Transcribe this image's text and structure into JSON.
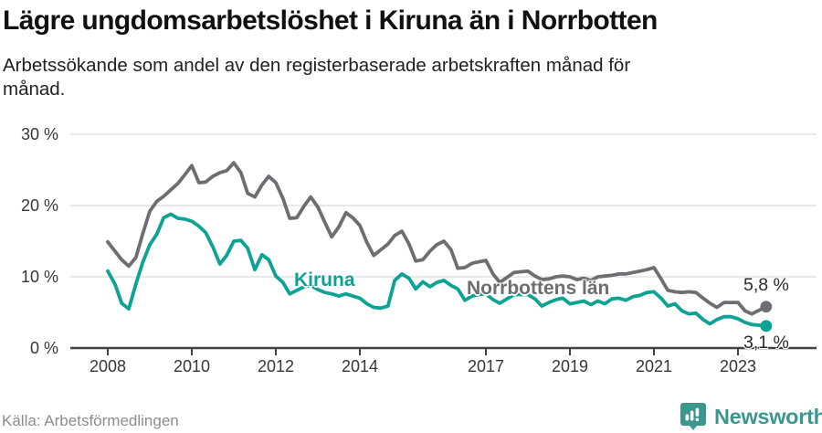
{
  "header": {
    "title": "Lägre ungdomsarbetslöshet i Kiruna än i Norrbotten",
    "subtitle": "Arbetssökande som andel av den registerbaserade arbetskraften månad för månad."
  },
  "footer": {
    "source": "Källa: Arbetsförmedlingen",
    "brand_name": "Newsworthy",
    "brand_icon": "bar-chart-speech-bubble-icon",
    "brand_color": "#3B978D"
  },
  "colors": {
    "kiruna_line": "#0CA294",
    "norrbotten_line": "#6D6D72",
    "gridline": "#E2E2E2",
    "axis": "#404046",
    "axis_text": "#36363B",
    "end_label_text": "#2B2B2B"
  },
  "chart_data": {
    "type": "line",
    "title": "Lägre ungdomsarbetslöshet i Kiruna än i Norrbotten",
    "subtitle": "Arbetssökande som andel av den registerbaserade arbetskraften månad för månad.",
    "unit": "%",
    "grid": "horizontal-only",
    "legend_position": "inline-labels",
    "x_axis": {
      "tick_labels": [
        "2008",
        "2010",
        "2012",
        "2014",
        "2017",
        "2019",
        "2021",
        "2023"
      ],
      "tick_values": [
        2008,
        2010,
        2012,
        2014,
        2017,
        2019,
        2021,
        2023
      ],
      "range": [
        2007.75,
        2024.1
      ]
    },
    "y_axis": {
      "tick_labels": [
        "0 %",
        "10 %",
        "20 %",
        "30 %"
      ],
      "tick_values": [
        0,
        10,
        20,
        30
      ],
      "range": [
        0,
        30
      ]
    },
    "series": [
      {
        "name": "Norrbottens län",
        "color": "#6D6D72",
        "end_label": "5,8 %",
        "end_value": 5.8,
        "points": [
          [
            2008.0,
            14.9
          ],
          [
            2008.17,
            13.6
          ],
          [
            2008.33,
            12.4
          ],
          [
            2008.5,
            11.5
          ],
          [
            2008.67,
            12.7
          ],
          [
            2008.83,
            16.0
          ],
          [
            2009.0,
            19.2
          ],
          [
            2009.17,
            20.6
          ],
          [
            2009.33,
            21.3
          ],
          [
            2009.5,
            22.2
          ],
          [
            2009.67,
            23.1
          ],
          [
            2009.83,
            24.3
          ],
          [
            2010.0,
            25.6
          ],
          [
            2010.17,
            23.2
          ],
          [
            2010.33,
            23.3
          ],
          [
            2010.5,
            24.1
          ],
          [
            2010.67,
            24.6
          ],
          [
            2010.83,
            24.9
          ],
          [
            2011.0,
            26.0
          ],
          [
            2011.17,
            24.6
          ],
          [
            2011.33,
            21.7
          ],
          [
            2011.5,
            21.2
          ],
          [
            2011.67,
            22.9
          ],
          [
            2011.83,
            24.1
          ],
          [
            2012.0,
            23.2
          ],
          [
            2012.17,
            21.0
          ],
          [
            2012.33,
            18.2
          ],
          [
            2012.5,
            18.3
          ],
          [
            2012.67,
            19.9
          ],
          [
            2012.83,
            21.2
          ],
          [
            2013.0,
            19.8
          ],
          [
            2013.17,
            17.6
          ],
          [
            2013.33,
            15.6
          ],
          [
            2013.5,
            17.0
          ],
          [
            2013.67,
            19.0
          ],
          [
            2013.83,
            18.3
          ],
          [
            2014.0,
            17.2
          ],
          [
            2014.17,
            14.8
          ],
          [
            2014.33,
            13.0
          ],
          [
            2014.5,
            13.8
          ],
          [
            2014.67,
            14.6
          ],
          [
            2014.83,
            15.8
          ],
          [
            2015.0,
            16.4
          ],
          [
            2015.17,
            14.6
          ],
          [
            2015.33,
            12.2
          ],
          [
            2015.5,
            12.4
          ],
          [
            2015.67,
            13.6
          ],
          [
            2015.83,
            14.5
          ],
          [
            2016.0,
            15.0
          ],
          [
            2016.17,
            13.8
          ],
          [
            2016.33,
            11.2
          ],
          [
            2016.5,
            11.3
          ],
          [
            2016.67,
            11.9
          ],
          [
            2016.83,
            12.1
          ],
          [
            2017.0,
            12.3
          ],
          [
            2017.17,
            10.4
          ],
          [
            2017.33,
            9.2
          ],
          [
            2017.5,
            9.9
          ],
          [
            2017.67,
            10.6
          ],
          [
            2017.83,
            10.7
          ],
          [
            2018.0,
            10.8
          ],
          [
            2018.17,
            10.1
          ],
          [
            2018.33,
            9.6
          ],
          [
            2018.5,
            9.7
          ],
          [
            2018.67,
            10.0
          ],
          [
            2018.83,
            10.1
          ],
          [
            2019.0,
            10.0
          ],
          [
            2019.17,
            9.6
          ],
          [
            2019.33,
            9.8
          ],
          [
            2019.5,
            9.5
          ],
          [
            2019.67,
            10.0
          ],
          [
            2019.83,
            10.1
          ],
          [
            2020.0,
            10.2
          ],
          [
            2020.17,
            10.4
          ],
          [
            2020.33,
            10.4
          ],
          [
            2020.5,
            10.6
          ],
          [
            2020.67,
            10.8
          ],
          [
            2020.83,
            11.0
          ],
          [
            2021.0,
            11.3
          ],
          [
            2021.17,
            9.7
          ],
          [
            2021.33,
            8.1
          ],
          [
            2021.5,
            7.9
          ],
          [
            2021.67,
            7.8
          ],
          [
            2021.83,
            7.9
          ],
          [
            2022.0,
            7.8
          ],
          [
            2022.17,
            7.0
          ],
          [
            2022.33,
            6.3
          ],
          [
            2022.5,
            5.7
          ],
          [
            2022.67,
            6.4
          ],
          [
            2022.83,
            6.4
          ],
          [
            2023.0,
            6.4
          ],
          [
            2023.17,
            5.2
          ],
          [
            2023.33,
            4.8
          ],
          [
            2023.5,
            5.3
          ],
          [
            2023.67,
            5.8
          ]
        ]
      },
      {
        "name": "Kiruna",
        "color": "#0CA294",
        "end_label": "3,1 %",
        "end_value": 3.1,
        "points": [
          [
            2008.0,
            10.8
          ],
          [
            2008.17,
            9.0
          ],
          [
            2008.33,
            6.3
          ],
          [
            2008.5,
            5.5
          ],
          [
            2008.67,
            9.0
          ],
          [
            2008.83,
            12.0
          ],
          [
            2009.0,
            14.5
          ],
          [
            2009.17,
            16.0
          ],
          [
            2009.33,
            18.3
          ],
          [
            2009.5,
            18.8
          ],
          [
            2009.67,
            18.2
          ],
          [
            2009.83,
            18.1
          ],
          [
            2010.0,
            17.8
          ],
          [
            2010.17,
            17.1
          ],
          [
            2010.33,
            16.2
          ],
          [
            2010.5,
            14.2
          ],
          [
            2010.67,
            11.8
          ],
          [
            2010.83,
            13.0
          ],
          [
            2011.0,
            15.0
          ],
          [
            2011.17,
            15.1
          ],
          [
            2011.33,
            14.0
          ],
          [
            2011.5,
            11.0
          ],
          [
            2011.67,
            13.1
          ],
          [
            2011.83,
            12.4
          ],
          [
            2012.0,
            10.1
          ],
          [
            2012.17,
            9.2
          ],
          [
            2012.33,
            7.6
          ],
          [
            2012.5,
            8.1
          ],
          [
            2012.67,
            8.6
          ],
          [
            2012.83,
            8.8
          ],
          [
            2013.0,
            8.2
          ],
          [
            2013.17,
            7.8
          ],
          [
            2013.33,
            7.6
          ],
          [
            2013.5,
            7.3
          ],
          [
            2013.67,
            7.6
          ],
          [
            2013.83,
            7.3
          ],
          [
            2014.0,
            7.0
          ],
          [
            2014.17,
            6.2
          ],
          [
            2014.33,
            5.7
          ],
          [
            2014.5,
            5.6
          ],
          [
            2014.67,
            5.9
          ],
          [
            2014.83,
            9.5
          ],
          [
            2015.0,
            10.4
          ],
          [
            2015.17,
            9.8
          ],
          [
            2015.33,
            8.3
          ],
          [
            2015.5,
            9.3
          ],
          [
            2015.67,
            8.6
          ],
          [
            2015.83,
            9.2
          ],
          [
            2016.0,
            9.5
          ],
          [
            2016.17,
            8.8
          ],
          [
            2016.33,
            8.3
          ],
          [
            2016.5,
            6.7
          ],
          [
            2016.67,
            7.3
          ],
          [
            2016.83,
            7.5
          ],
          [
            2017.0,
            7.6
          ],
          [
            2017.17,
            6.8
          ],
          [
            2017.33,
            6.3
          ],
          [
            2017.5,
            6.9
          ],
          [
            2017.67,
            7.5
          ],
          [
            2017.83,
            7.5
          ],
          [
            2018.0,
            7.5
          ],
          [
            2018.17,
            6.9
          ],
          [
            2018.33,
            5.9
          ],
          [
            2018.5,
            6.4
          ],
          [
            2018.67,
            6.8
          ],
          [
            2018.83,
            7.0
          ],
          [
            2019.0,
            6.2
          ],
          [
            2019.17,
            6.4
          ],
          [
            2019.33,
            6.6
          ],
          [
            2019.5,
            6.1
          ],
          [
            2019.67,
            6.6
          ],
          [
            2019.83,
            6.2
          ],
          [
            2020.0,
            6.9
          ],
          [
            2020.17,
            7.0
          ],
          [
            2020.33,
            6.7
          ],
          [
            2020.5,
            7.2
          ],
          [
            2020.67,
            7.4
          ],
          [
            2020.83,
            7.8
          ],
          [
            2021.0,
            7.9
          ],
          [
            2021.17,
            7.0
          ],
          [
            2021.33,
            5.9
          ],
          [
            2021.5,
            6.2
          ],
          [
            2021.67,
            5.2
          ],
          [
            2021.83,
            4.8
          ],
          [
            2022.0,
            4.9
          ],
          [
            2022.17,
            4.0
          ],
          [
            2022.33,
            3.4
          ],
          [
            2022.5,
            4.0
          ],
          [
            2022.67,
            4.4
          ],
          [
            2022.83,
            4.4
          ],
          [
            2023.0,
            4.1
          ],
          [
            2023.17,
            3.6
          ],
          [
            2023.33,
            3.3
          ],
          [
            2023.5,
            3.2
          ],
          [
            2023.67,
            3.1
          ]
        ]
      }
    ]
  }
}
